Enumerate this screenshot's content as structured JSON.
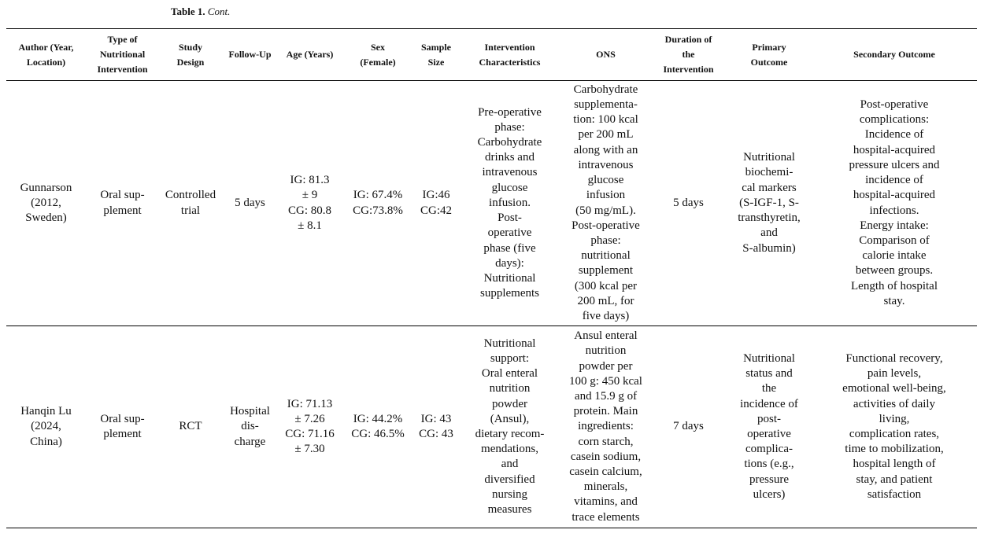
{
  "caption": {
    "label": "Table 1.",
    "text": "Cont."
  },
  "headers": [
    "Author (Year,\nLocation)",
    "Type of\nNutritional\nIntervention",
    "Study\nDesign",
    "Follow-Up",
    "Age (Years)",
    "Sex\n(Female)",
    "Sample\nSize",
    "Intervention\nCharacteristics",
    "ONS",
    "Duration of\nthe\nIntervention",
    "Primary\nOutcome",
    "Secondary Outcome"
  ],
  "rows": [
    [
      "Gunnarson\n(2012,\nSweden)",
      "Oral sup-\nplement",
      "Controlled\ntrial",
      "5 days",
      "IG: 81.3\n± 9\nCG: 80.8\n± 8.1",
      "IG: 67.4%\nCG:73.8%",
      "IG:46\nCG:42",
      "Pre-operative\nphase:\nCarbohydrate\ndrinks and\nintravenous\nglucose\ninfusion.\nPost-\noperative\nphase (five\ndays):\nNutritional\nsupplements",
      "Carbohydrate\nsupplementa-\ntion: 100 kcal\nper 200 mL\nalong with an\nintravenous\nglucose\ninfusion\n(50 mg/mL).\nPost-operative\nphase:\nnutritional\nsupplement\n(300 kcal per\n200 mL, for\nfive days)",
      "5 days",
      "Nutritional\nbiochemi-\ncal markers\n(S-IGF-1, S-\ntransthyretin,\nand\nS-albumin)",
      "Post-operative\ncomplications:\nIncidence of\nhospital-acquired\npressure ulcers and\nincidence of\nhospital-acquired\ninfections.\nEnergy intake:\nComparison of\ncalorie intake\nbetween groups.\nLength of hospital\nstay."
    ],
    [
      "Hanqin Lu\n(2024,\nChina)",
      "Oral sup-\nplement",
      "RCT",
      "Hospital\ndis-\ncharge",
      "IG: 71.13\n± 7.26\nCG: 71.16\n± 7.30",
      "IG: 44.2%\nCG: 46.5%",
      "IG: 43\nCG: 43",
      "Nutritional\nsupport:\nOral enteral\nnutrition\npowder\n(Ansul),\ndietary recom-\nmendations,\nand\ndiversified\nnursing\nmeasures",
      "Ansul enteral\nnutrition\npowder per\n100 g: 450 kcal\nand 15.9 g of\nprotein. Main\ningredients:\ncorn starch,\ncasein sodium,\ncasein calcium,\nminerals,\nvitamins, and\ntrace elements",
      "7 days",
      "Nutritional\nstatus and\nthe\nincidence of\npost-\noperative\ncomplica-\ntions (e.g.,\npressure\nulcers)",
      "Functional recovery,\npain levels,\nemotional well-being,\nactivities of daily\nliving,\ncomplication rates,\ntime to mobilization,\nhospital length of\nstay, and patient\nsatisfaction"
    ]
  ]
}
